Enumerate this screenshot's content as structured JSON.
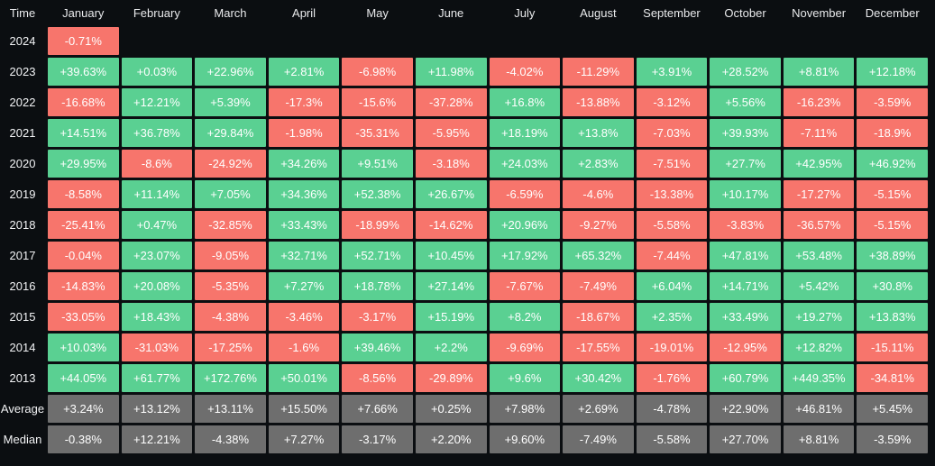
{
  "colors": {
    "background": "#0B0E11",
    "positive_cell": "#5AD092",
    "negative_cell": "#F7756C",
    "summary_cell": "#6E6E6E",
    "cell_text": "#FFFFFF",
    "header_text": "#E9EAEC",
    "row_label_text": "#F2F3F5"
  },
  "chart_data": {
    "type": "heatmap",
    "corner_label": "Time",
    "columns": [
      "January",
      "February",
      "March",
      "April",
      "May",
      "June",
      "July",
      "August",
      "September",
      "October",
      "November",
      "December"
    ],
    "legend": "green = positive monthly return, red = negative monthly return, gray = summary rows",
    "rows": [
      {
        "label": "2024",
        "kind": "year",
        "values": [
          "-0.71%",
          "",
          "",
          "",
          "",
          "",
          "",
          "",
          "",
          "",
          "",
          ""
        ]
      },
      {
        "label": "2023",
        "kind": "year",
        "values": [
          "+39.63%",
          "+0.03%",
          "+22.96%",
          "+2.81%",
          "-6.98%",
          "+11.98%",
          "-4.02%",
          "-11.29%",
          "+3.91%",
          "+28.52%",
          "+8.81%",
          "+12.18%"
        ]
      },
      {
        "label": "2022",
        "kind": "year",
        "values": [
          "-16.68%",
          "+12.21%",
          "+5.39%",
          "-17.3%",
          "-15.6%",
          "-37.28%",
          "+16.8%",
          "-13.88%",
          "-3.12%",
          "+5.56%",
          "-16.23%",
          "-3.59%"
        ]
      },
      {
        "label": "2021",
        "kind": "year",
        "values": [
          "+14.51%",
          "+36.78%",
          "+29.84%",
          "-1.98%",
          "-35.31%",
          "-5.95%",
          "+18.19%",
          "+13.8%",
          "-7.03%",
          "+39.93%",
          "-7.11%",
          "-18.9%"
        ]
      },
      {
        "label": "2020",
        "kind": "year",
        "values": [
          "+29.95%",
          "-8.6%",
          "-24.92%",
          "+34.26%",
          "+9.51%",
          "-3.18%",
          "+24.03%",
          "+2.83%",
          "-7.51%",
          "+27.7%",
          "+42.95%",
          "+46.92%"
        ]
      },
      {
        "label": "2019",
        "kind": "year",
        "values": [
          "-8.58%",
          "+11.14%",
          "+7.05%",
          "+34.36%",
          "+52.38%",
          "+26.67%",
          "-6.59%",
          "-4.6%",
          "-13.38%",
          "+10.17%",
          "-17.27%",
          "-5.15%"
        ]
      },
      {
        "label": "2018",
        "kind": "year",
        "values": [
          "-25.41%",
          "+0.47%",
          "-32.85%",
          "+33.43%",
          "-18.99%",
          "-14.62%",
          "+20.96%",
          "-9.27%",
          "-5.58%",
          "-3.83%",
          "-36.57%",
          "-5.15%"
        ]
      },
      {
        "label": "2017",
        "kind": "year",
        "values": [
          "-0.04%",
          "+23.07%",
          "-9.05%",
          "+32.71%",
          "+52.71%",
          "+10.45%",
          "+17.92%",
          "+65.32%",
          "-7.44%",
          "+47.81%",
          "+53.48%",
          "+38.89%"
        ]
      },
      {
        "label": "2016",
        "kind": "year",
        "values": [
          "-14.83%",
          "+20.08%",
          "-5.35%",
          "+7.27%",
          "+18.78%",
          "+27.14%",
          "-7.67%",
          "-7.49%",
          "+6.04%",
          "+14.71%",
          "+5.42%",
          "+30.8%"
        ]
      },
      {
        "label": "2015",
        "kind": "year",
        "values": [
          "-33.05%",
          "+18.43%",
          "-4.38%",
          "-3.46%",
          "-3.17%",
          "+15.19%",
          "+8.2%",
          "-18.67%",
          "+2.35%",
          "+33.49%",
          "+19.27%",
          "+13.83%"
        ]
      },
      {
        "label": "2014",
        "kind": "year",
        "values": [
          "+10.03%",
          "-31.03%",
          "-17.25%",
          "-1.6%",
          "+39.46%",
          "+2.2%",
          "-9.69%",
          "-17.55%",
          "-19.01%",
          "-12.95%",
          "+12.82%",
          "-15.11%"
        ]
      },
      {
        "label": "2013",
        "kind": "year",
        "values": [
          "+44.05%",
          "+61.77%",
          "+172.76%",
          "+50.01%",
          "-8.56%",
          "-29.89%",
          "+9.6%",
          "+30.42%",
          "-1.76%",
          "+60.79%",
          "+449.35%",
          "-34.81%"
        ]
      },
      {
        "label": "Average",
        "kind": "summary",
        "values": [
          "+3.24%",
          "+13.12%",
          "+13.11%",
          "+15.50%",
          "+7.66%",
          "+0.25%",
          "+7.98%",
          "+2.69%",
          "-4.78%",
          "+22.90%",
          "+46.81%",
          "+5.45%"
        ]
      },
      {
        "label": "Median",
        "kind": "summary",
        "values": [
          "-0.38%",
          "+12.21%",
          "-4.38%",
          "+7.27%",
          "-3.17%",
          "+2.20%",
          "+9.60%",
          "-7.49%",
          "-5.58%",
          "+27.70%",
          "+8.81%",
          "-3.59%"
        ]
      }
    ]
  }
}
